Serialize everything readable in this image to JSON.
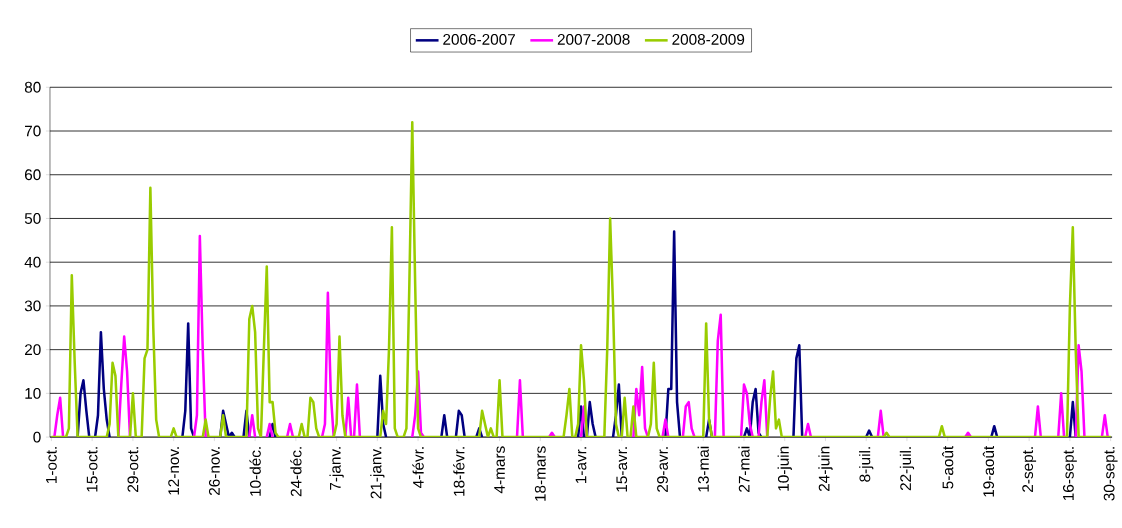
{
  "chart_data": {
    "type": "line",
    "legend": "top",
    "grid": "y",
    "ylim": [
      0,
      80
    ],
    "yticks": [
      0,
      10,
      20,
      30,
      40,
      50,
      60,
      70,
      80
    ],
    "categories": [
      "1-oct.",
      null,
      null,
      null,
      null,
      null,
      null,
      null,
      null,
      null,
      null,
      null,
      null,
      null,
      "15-oct.",
      null,
      null,
      null,
      null,
      null,
      null,
      null,
      null,
      null,
      null,
      null,
      null,
      null,
      "29-oct.",
      null,
      null,
      null,
      null,
      null,
      null,
      null,
      null,
      null,
      null,
      null,
      null,
      null,
      "12-nov.",
      null,
      null,
      null,
      null,
      null,
      null,
      null,
      null,
      null,
      null,
      null,
      null,
      null,
      "26-nov.",
      null,
      null,
      null,
      null,
      null,
      null,
      null,
      null,
      null,
      null,
      null,
      null,
      null,
      "10-déc.",
      null,
      null,
      null,
      null,
      null,
      null,
      null,
      null,
      null,
      null,
      null,
      null,
      null,
      "24-déc.",
      null,
      null,
      null,
      null,
      null,
      null,
      null,
      null,
      null,
      null,
      null,
      null,
      null,
      "7-janv.",
      null,
      null,
      null,
      null,
      null,
      null,
      null,
      null,
      null,
      null,
      null,
      null,
      null,
      "21-janv.",
      null,
      null,
      null,
      null,
      null,
      null,
      null,
      null,
      null,
      null,
      null,
      null,
      null,
      "4-févr.",
      null,
      null,
      null,
      null,
      null,
      null,
      null,
      null,
      null,
      null,
      null,
      null,
      null,
      "18-févr.",
      null,
      null,
      null,
      null,
      null,
      null,
      null,
      null,
      null,
      null,
      null,
      null,
      null,
      "4-mars",
      null,
      null,
      null,
      null,
      null,
      null,
      null,
      null,
      null,
      null,
      null,
      null,
      null,
      "18-mars",
      null,
      null,
      null,
      null,
      null,
      null,
      null,
      null,
      null,
      null,
      null,
      null,
      null,
      "1-avr.",
      null,
      null,
      null,
      null,
      null,
      null,
      null,
      null,
      null,
      null,
      null,
      null,
      null,
      "15-avr.",
      null,
      null,
      null,
      null,
      null,
      null,
      null,
      null,
      null,
      null,
      null,
      null,
      null,
      "29-avr.",
      null,
      null,
      null,
      null,
      null,
      null,
      null,
      null,
      null,
      null,
      null,
      null,
      null,
      "13-mai",
      null,
      null,
      null,
      null,
      null,
      null,
      null,
      null,
      null,
      null,
      null,
      null,
      null,
      "27-mai",
      null,
      null,
      null,
      null,
      null,
      null,
      null,
      null,
      null,
      null,
      null,
      null,
      null,
      "10-juin",
      null,
      null,
      null,
      null,
      null,
      null,
      null,
      null,
      null,
      null,
      null,
      null,
      null,
      "24-juin",
      null,
      null,
      null,
      null,
      null,
      null,
      null,
      null,
      null,
      null,
      null,
      null,
      null,
      "8-juil.",
      null,
      null,
      null,
      null,
      null,
      null,
      null,
      null,
      null,
      null,
      null,
      null,
      null,
      "22-juil.",
      null,
      null,
      null,
      null,
      null,
      null,
      null,
      null,
      null,
      null,
      null,
      null,
      null,
      "5-août",
      null,
      null,
      null,
      null,
      null,
      null,
      null,
      null,
      null,
      null,
      null,
      null,
      null,
      "19-août",
      null,
      null,
      null,
      null,
      null,
      null,
      null,
      null,
      null,
      null,
      null,
      null,
      null,
      "2-sept.",
      null,
      null,
      null,
      null,
      null,
      null,
      null,
      null,
      null,
      null,
      null,
      null,
      null,
      "16-sept.",
      null,
      null,
      null,
      null,
      null,
      null,
      null,
      null,
      null,
      null,
      null,
      null,
      null,
      "30-sept."
    ],
    "series": [
      {
        "name": "2006-2007",
        "color": "#000080",
        "values": [
          null,
          null,
          null,
          null,
          null,
          null,
          null,
          null,
          null,
          0,
          10,
          13,
          6,
          0,
          null,
          0,
          5,
          24,
          11,
          4,
          0,
          null,
          null,
          null,
          null,
          null,
          null,
          null,
          null,
          null,
          null,
          null,
          null,
          null,
          null,
          null,
          null,
          null,
          null,
          null,
          null,
          null,
          null,
          null,
          null,
          0,
          6,
          26,
          2,
          0,
          null,
          null,
          null,
          null,
          null,
          null,
          null,
          null,
          0,
          6,
          3,
          0,
          1,
          0,
          null,
          null,
          0,
          6,
          0,
          null,
          null,
          null,
          null,
          null,
          null,
          0,
          3,
          0,
          null,
          null,
          null,
          null,
          null,
          null,
          null,
          null,
          null,
          null,
          null,
          null,
          null,
          null,
          null,
          null,
          null,
          null,
          null,
          null,
          null,
          null,
          null,
          null,
          null,
          null,
          null,
          null,
          null,
          null,
          null,
          null,
          null,
          null,
          0,
          14,
          3,
          0,
          null,
          null,
          null,
          null,
          null,
          null,
          null,
          null,
          null,
          null,
          null,
          null,
          null,
          null,
          null,
          null,
          null,
          null,
          0,
          5,
          0,
          null,
          null,
          0,
          6,
          5,
          0,
          null,
          null,
          null,
          0,
          2,
          0,
          null,
          null,
          null,
          null,
          null,
          null,
          null,
          null,
          null,
          null,
          null,
          null,
          null,
          null,
          null,
          null,
          null,
          null,
          null,
          null,
          null,
          null,
          null,
          null,
          null,
          null,
          null,
          null,
          null,
          null,
          null,
          null,
          0,
          7,
          0,
          0,
          8,
          3,
          0,
          null,
          null,
          null,
          null,
          null,
          0,
          5,
          12,
          0,
          null,
          null,
          null,
          null,
          null,
          null,
          null,
          null,
          null,
          null,
          null,
          null,
          null,
          null,
          0,
          11,
          11,
          47,
          8,
          0,
          null,
          null,
          null,
          null,
          null,
          null,
          null,
          null,
          0,
          4,
          0,
          null,
          null,
          null,
          null,
          null,
          null,
          null,
          null,
          null,
          null,
          0,
          2,
          0,
          8,
          11,
          1,
          0,
          null,
          null,
          null,
          null,
          null,
          null,
          null,
          null,
          null,
          null,
          0,
          18,
          21,
          0,
          null,
          null,
          null,
          null,
          null,
          null,
          null,
          null,
          null,
          null,
          null,
          null,
          null,
          null,
          null,
          null,
          null,
          null,
          null,
          null,
          null,
          0,
          1.5,
          0,
          null,
          null,
          null,
          null,
          null,
          null,
          null,
          null,
          null,
          null,
          null,
          null,
          null,
          null,
          null,
          null,
          null,
          null,
          null,
          null,
          null,
          null,
          null,
          null,
          null,
          null,
          null,
          null,
          null,
          null,
          null,
          null,
          null,
          null,
          null,
          null,
          null,
          null,
          null,
          null,
          0,
          2.5,
          0,
          null,
          null,
          null,
          null,
          null,
          null,
          null,
          null,
          null,
          null,
          null,
          null,
          null,
          null,
          null,
          null,
          null,
          null,
          null,
          null,
          null,
          null,
          null,
          null,
          0,
          8,
          0,
          null,
          null,
          null,
          null,
          null,
          null,
          null,
          null,
          null,
          null,
          null,
          null
        ]
      },
      {
        "name": "2007-2008",
        "color": "#ff00ff",
        "values": [
          null,
          0,
          5,
          9,
          0,
          null,
          null,
          null,
          null,
          null,
          null,
          null,
          null,
          null,
          null,
          null,
          null,
          null,
          null,
          null,
          null,
          null,
          null,
          0,
          12,
          23,
          15,
          0,
          null,
          null,
          null,
          null,
          null,
          null,
          null,
          null,
          null,
          null,
          null,
          null,
          null,
          null,
          null,
          null,
          null,
          null,
          null,
          null,
          null,
          0,
          5,
          46,
          20,
          0,
          null,
          null,
          null,
          null,
          null,
          null,
          null,
          null,
          null,
          null,
          null,
          null,
          null,
          null,
          0,
          5,
          0,
          null,
          null,
          null,
          0,
          3,
          0,
          null,
          null,
          null,
          null,
          0,
          3,
          0,
          null,
          null,
          null,
          null,
          null,
          null,
          null,
          null,
          null,
          0,
          3,
          33,
          10,
          0,
          null,
          null,
          null,
          0,
          9,
          0,
          0,
          12,
          0,
          null,
          null,
          null,
          null,
          null,
          null,
          null,
          null,
          null,
          null,
          null,
          null,
          null,
          null,
          null,
          null,
          null,
          0,
          5,
          15,
          1,
          0,
          null,
          null,
          null,
          null,
          null,
          null,
          null,
          null,
          null,
          null,
          null,
          null,
          null,
          null,
          null,
          null,
          null,
          null,
          null,
          null,
          null,
          null,
          null,
          null,
          null,
          null,
          null,
          null,
          null,
          null,
          null,
          0,
          13,
          0,
          null,
          null,
          null,
          null,
          null,
          null,
          null,
          null,
          0,
          1,
          0,
          null,
          null,
          null,
          null,
          null,
          null,
          null,
          null,
          0,
          7,
          0,
          null,
          null,
          null,
          null,
          null,
          null,
          null,
          null,
          null,
          null,
          null,
          null,
          null,
          null,
          null,
          0,
          11,
          5,
          16,
          2,
          0,
          null,
          null,
          null,
          null,
          0,
          4,
          0,
          null,
          null,
          null,
          null,
          0,
          7,
          8,
          2,
          0,
          null,
          null,
          null,
          null,
          null,
          null,
          0,
          22,
          28,
          0,
          null,
          null,
          null,
          null,
          null,
          0,
          12,
          10,
          3,
          0,
          null,
          0,
          8,
          13,
          0,
          null,
          null,
          null,
          null,
          null,
          null,
          null,
          null,
          null,
          null,
          null,
          null,
          0,
          3,
          0,
          null,
          null,
          null,
          null,
          null,
          null,
          null,
          null,
          null,
          null,
          null,
          null,
          null,
          null,
          null,
          null,
          null,
          null,
          null,
          null,
          null,
          null,
          0,
          6,
          0,
          null,
          null,
          null,
          null,
          null,
          null,
          null,
          null,
          null,
          null,
          null,
          null,
          null,
          null,
          null,
          null,
          null,
          null,
          null,
          null,
          null,
          null,
          null,
          null,
          null,
          null,
          null,
          0,
          1,
          0,
          null,
          null,
          null,
          null,
          null,
          null,
          null,
          null,
          null,
          null,
          null,
          null,
          null,
          null,
          null,
          null,
          null,
          null,
          null,
          null,
          null,
          0,
          7,
          0,
          null,
          null,
          null,
          null,
          null,
          0,
          10,
          0,
          null,
          null,
          null,
          0,
          21,
          15,
          0,
          null,
          null,
          null,
          null,
          null,
          0,
          5,
          0,
          null
        ]
      },
      {
        "name": "2008-2009",
        "color": "#99cc00",
        "values": [
          0,
          0,
          0,
          0,
          0,
          0,
          2,
          37,
          17,
          0,
          0,
          0,
          0,
          0,
          0,
          0,
          0,
          0,
          0,
          0,
          3,
          17,
          14,
          0,
          0,
          0,
          0,
          0,
          10,
          0,
          0,
          0,
          18,
          20,
          57,
          25,
          4,
          0,
          0,
          0,
          0,
          0,
          2,
          0,
          0,
          0,
          0,
          0,
          0,
          0,
          0,
          0,
          0,
          4,
          0,
          0,
          0,
          0,
          0,
          5,
          0,
          0,
          0,
          0,
          0,
          0,
          0,
          0,
          27,
          30,
          24,
          2,
          0,
          20,
          39,
          8,
          8,
          1,
          0,
          0,
          0,
          0,
          0,
          0,
          0,
          0,
          3,
          0,
          0,
          9,
          8,
          2,
          0,
          0,
          0,
          0,
          0,
          0,
          3,
          23,
          5,
          0,
          0,
          0,
          0,
          0,
          0,
          0,
          0,
          0,
          0,
          0,
          0,
          0,
          6,
          3,
          20,
          48,
          2,
          0,
          0,
          0,
          2,
          35,
          72,
          35,
          2,
          0,
          0,
          0,
          0,
          0,
          0,
          0,
          0,
          0,
          0,
          0,
          0,
          0,
          0,
          0,
          0,
          0,
          0,
          0,
          0,
          0,
          6,
          3,
          0,
          2,
          0,
          0,
          13,
          0,
          0,
          0,
          0,
          0,
          0,
          0,
          0,
          0,
          0,
          0,
          0,
          0,
          0,
          0,
          0,
          0,
          0,
          0,
          0,
          0,
          0,
          5,
          11,
          0,
          0,
          3,
          21,
          13,
          0,
          0,
          0,
          0,
          0,
          0,
          0,
          20,
          50,
          30,
          3,
          0,
          0,
          9,
          0,
          0,
          7,
          0,
          0,
          0,
          0,
          0,
          3,
          17,
          2,
          0,
          0,
          0,
          0,
          0,
          0,
          0,
          0,
          0,
          0,
          0,
          0,
          0,
          0,
          0,
          0,
          26,
          4,
          0,
          0,
          0,
          0,
          0,
          0,
          0,
          0,
          0,
          0,
          0,
          0,
          0,
          0,
          0,
          0,
          0,
          0,
          0,
          0,
          9,
          15,
          2,
          4,
          0,
          0,
          0,
          0,
          0,
          0,
          0,
          0,
          0,
          0,
          0,
          0,
          0,
          0,
          0,
          0,
          0,
          0,
          0,
          0,
          0,
          0,
          0,
          0,
          0,
          0,
          0,
          0,
          0,
          0,
          0,
          0,
          0,
          0,
          0,
          0,
          1,
          0,
          0,
          0,
          0,
          0,
          0,
          0,
          0,
          0,
          0,
          0,
          0,
          0,
          0,
          0,
          0,
          0,
          0,
          2.5,
          0,
          0,
          0,
          0,
          0,
          0,
          0,
          0,
          0,
          0,
          0,
          0,
          0,
          0,
          0,
          0,
          0,
          0,
          0,
          0,
          0,
          0,
          0,
          0,
          0,
          0,
          0,
          0,
          0,
          0,
          0,
          0,
          0,
          0,
          0,
          0,
          0,
          0,
          0,
          0,
          0,
          0,
          0,
          30,
          48,
          20,
          0,
          0,
          0,
          0,
          0,
          0,
          0,
          0,
          0,
          0,
          0,
          0
        ]
      }
    ]
  }
}
